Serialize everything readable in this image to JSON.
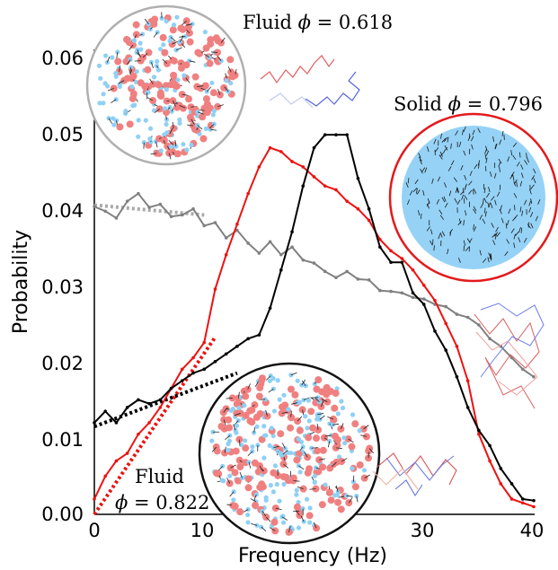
{
  "chart_data": {
    "type": "line",
    "xlabel": "Frequency (Hz)",
    "ylabel": "Probability",
    "xlim": [
      0,
      40
    ],
    "ylim": [
      0,
      0.065
    ],
    "x_ticks": [
      "0",
      "10",
      "20",
      "30",
      "40"
    ],
    "y_ticks": [
      "0.00",
      "0.01",
      "0.02",
      "0.03",
      "0.04",
      "0.05",
      "0.06"
    ],
    "grid": false,
    "series": [
      {
        "color": "#808080",
        "points": [
          [
            0,
            0.0403
          ],
          [
            1,
            0.0397
          ],
          [
            2,
            0.0388
          ],
          [
            3,
            0.041
          ],
          [
            4,
            0.042
          ],
          [
            5,
            0.0402
          ],
          [
            6,
            0.0406
          ],
          [
            7,
            0.039
          ],
          [
            8,
            0.0392
          ],
          [
            9,
            0.04
          ],
          [
            10,
            0.0378
          ],
          [
            11,
            0.0382
          ],
          [
            12,
            0.0362
          ],
          [
            13,
            0.0372
          ],
          [
            14,
            0.0355
          ],
          [
            15,
            0.0342
          ],
          [
            16,
            0.0357
          ],
          [
            17,
            0.034
          ],
          [
            18,
            0.035
          ],
          [
            19,
            0.0333
          ],
          [
            20,
            0.0329
          ],
          [
            21,
            0.0318
          ],
          [
            22,
            0.031
          ],
          [
            23,
            0.0318
          ],
          [
            24,
            0.0308
          ],
          [
            25,
            0.0307
          ],
          [
            26,
            0.0293
          ],
          [
            27,
            0.0292
          ],
          [
            28,
            0.029
          ],
          [
            29,
            0.0284
          ],
          [
            30,
            0.0282
          ],
          [
            31,
            0.0275
          ],
          [
            32,
            0.0272
          ],
          [
            33,
            0.0262
          ],
          [
            34,
            0.0258
          ],
          [
            35,
            0.0248
          ],
          [
            36,
            0.023
          ],
          [
            37,
            0.022
          ],
          [
            38,
            0.0205
          ],
          [
            39,
            0.019
          ],
          [
            40,
            0.018
          ]
        ]
      },
      {
        "color": "#ee1111",
        "points": [
          [
            0,
            0.002
          ],
          [
            1,
            0.005
          ],
          [
            2,
            0.007
          ],
          [
            3,
            0.008
          ],
          [
            4,
            0.0105
          ],
          [
            5,
            0.012
          ],
          [
            6,
            0.014
          ],
          [
            7,
            0.0165
          ],
          [
            8,
            0.019
          ],
          [
            9,
            0.0205
          ],
          [
            10,
            0.0225
          ],
          [
            11,
            0.0295
          ],
          [
            12,
            0.034
          ],
          [
            13,
            0.038
          ],
          [
            14,
            0.042
          ],
          [
            15,
            0.0455
          ],
          [
            16,
            0.048
          ],
          [
            17,
            0.0475
          ],
          [
            18,
            0.0462
          ],
          [
            19,
            0.0455
          ],
          [
            20,
            0.0442
          ],
          [
            21,
            0.043
          ],
          [
            22,
            0.0425
          ],
          [
            23,
            0.041
          ],
          [
            24,
            0.04
          ],
          [
            25,
            0.0385
          ],
          [
            26,
            0.036
          ],
          [
            27,
            0.0345
          ],
          [
            28,
            0.0335
          ],
          [
            29,
            0.032
          ],
          [
            30,
            0.03
          ],
          [
            31,
            0.028
          ],
          [
            32,
            0.025
          ],
          [
            33,
            0.022
          ],
          [
            34,
            0.0175
          ],
          [
            35,
            0.0105
          ],
          [
            36,
            0.007
          ],
          [
            37,
            0.004
          ],
          [
            38,
            0.002
          ],
          [
            39,
            0.0015
          ],
          [
            40,
            0.001
          ]
        ]
      },
      {
        "color": "#000000",
        "points": [
          [
            0,
            0.012
          ],
          [
            1,
            0.0135
          ],
          [
            2,
            0.012
          ],
          [
            3,
            0.014
          ],
          [
            4,
            0.015
          ],
          [
            5,
            0.0145
          ],
          [
            6,
            0.015
          ],
          [
            7,
            0.0165
          ],
          [
            8,
            0.0175
          ],
          [
            9,
            0.0185
          ],
          [
            10,
            0.019
          ],
          [
            11,
            0.02
          ],
          [
            12,
            0.021
          ],
          [
            13,
            0.022
          ],
          [
            14,
            0.023
          ],
          [
            15,
            0.0235
          ],
          [
            16,
            0.027
          ],
          [
            17,
            0.032
          ],
          [
            18,
            0.037
          ],
          [
            19,
            0.043
          ],
          [
            20,
            0.048
          ],
          [
            21,
            0.0497
          ],
          [
            22,
            0.0497
          ],
          [
            23,
            0.0497
          ],
          [
            24,
            0.044
          ],
          [
            25,
            0.04
          ],
          [
            26,
            0.035
          ],
          [
            27,
            0.033
          ],
          [
            28,
            0.033
          ],
          [
            29,
            0.029
          ],
          [
            30,
            0.0275
          ],
          [
            31,
            0.024
          ],
          [
            32,
            0.0215
          ],
          [
            33,
            0.018
          ],
          [
            34,
            0.014
          ],
          [
            35,
            0.011
          ],
          [
            36,
            0.009
          ],
          [
            37,
            0.006
          ],
          [
            38,
            0.004
          ],
          [
            39,
            0.002
          ],
          [
            40,
            0.0018
          ]
        ]
      }
    ],
    "fit_lines": [
      {
        "color": "#aaaaaa",
        "points": [
          [
            0,
            0.0405
          ],
          [
            10,
            0.0392
          ]
        ]
      },
      {
        "color": "#ee1111",
        "points": [
          [
            0,
            0.0
          ],
          [
            11,
            0.0232
          ]
        ]
      },
      {
        "color": "#000000",
        "points": [
          [
            0,
            0.0115
          ],
          [
            13,
            0.0185
          ]
        ]
      }
    ],
    "annotations": [
      {
        "text": "Fluid ",
        "symbol": "ϕ",
        "rest": " = 0.618"
      },
      {
        "text": "Solid ",
        "symbol": "ϕ",
        "rest": " = 0.796"
      },
      {
        "text": "Fluid",
        "symbol": "ϕ",
        "rest": " = 0.822"
      }
    ]
  },
  "inset_colors": {
    "gray_ring": "#b0b0b0",
    "red_ring": "#e31a1c",
    "black_ring": "#111111",
    "pink": "#f08080",
    "blue": "#8fd0f5"
  }
}
